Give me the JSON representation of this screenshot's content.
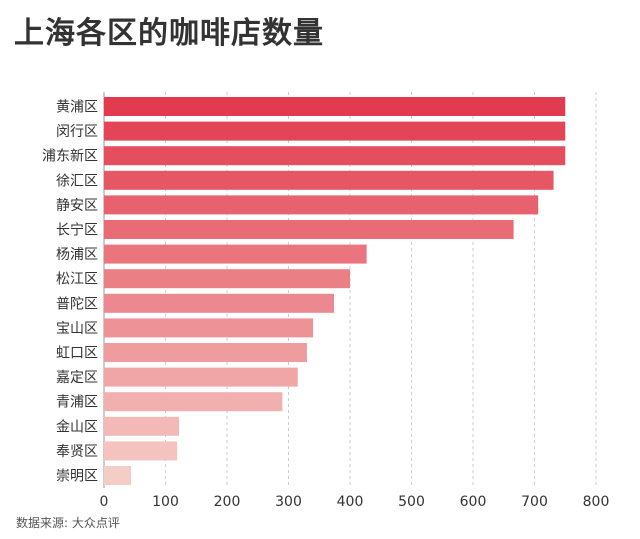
{
  "title": "上海各区的咖啡店数量",
  "source": "数据来源: 大众点评",
  "chart_data": {
    "type": "bar",
    "orientation": "horizontal",
    "title": "上海各区的咖啡店数量",
    "xlabel": "",
    "ylabel": "",
    "xlim": [
      0,
      800
    ],
    "ticks": [
      0,
      100,
      200,
      300,
      400,
      500,
      600,
      700,
      800
    ],
    "grid": true,
    "legend": "none",
    "categories": [
      "黄浦区",
      "闵行区",
      "浦东新区",
      "徐汇区",
      "静安区",
      "长宁区",
      "杨浦区",
      "松江区",
      "普陀区",
      "宝山区",
      "虹口区",
      "嘉定区",
      "青浦区",
      "金山区",
      "奉贤区",
      "崇明区"
    ],
    "values": [
      750,
      750,
      750,
      731,
      706,
      666,
      427,
      400,
      374,
      340,
      330,
      315,
      290,
      122,
      119,
      44
    ],
    "colors": {
      "gradient_start": "#e23a4e",
      "gradient_end": "#f5cdc7",
      "grid": "#cccccc"
    }
  }
}
